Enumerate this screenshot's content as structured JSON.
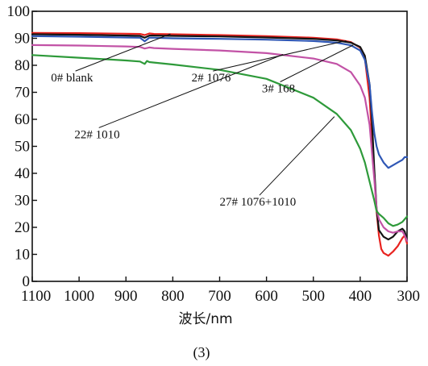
{
  "chart_data": {
    "type": "line",
    "title": "",
    "xlabel": "波长/nm",
    "ylabel": "",
    "caption": "(3)",
    "xlim": [
      1100,
      300
    ],
    "ylim": [
      0,
      100
    ],
    "x_ticks": [
      1100,
      1000,
      900,
      800,
      700,
      600,
      500,
      400,
      300
    ],
    "y_ticks": [
      0,
      10,
      20,
      30,
      40,
      50,
      60,
      70,
      80,
      90,
      100
    ],
    "grid": false,
    "legend": "annotations",
    "series": [
      {
        "name": "0# blank",
        "color": "#e8231f",
        "x": [
          1100,
          1000,
          900,
          870,
          860,
          850,
          840,
          800,
          700,
          600,
          500,
          450,
          420,
          400,
          390,
          380,
          370,
          365,
          360,
          355,
          350,
          340,
          330,
          320,
          310,
          305,
          300
        ],
        "y": [
          92,
          91.9,
          91.7,
          91.6,
          91.2,
          91.8,
          91.6,
          91.5,
          91.2,
          90.8,
          90.2,
          89.6,
          88.6,
          86.5,
          82.5,
          68,
          40,
          26,
          17,
          12,
          10.5,
          9.5,
          11,
          13,
          16,
          17,
          14
        ]
      },
      {
        "name": "2# 1076",
        "color": "#141414",
        "x": [
          1100,
          1000,
          900,
          870,
          860,
          850,
          840,
          800,
          700,
          600,
          500,
          450,
          420,
          400,
          390,
          380,
          375,
          370,
          365,
          360,
          350,
          340,
          330,
          320,
          310,
          305,
          300
        ],
        "y": [
          91.5,
          91.3,
          91,
          90.9,
          90.2,
          91,
          91,
          90.9,
          90.7,
          90.3,
          89.8,
          89.2,
          88.4,
          86.8,
          83.5,
          73,
          60,
          42,
          27,
          19,
          16.5,
          15.5,
          16.5,
          18.5,
          19.5,
          18.5,
          15
        ]
      },
      {
        "name": "3# 168",
        "color": "#2f57b5",
        "x": [
          1100,
          1000,
          900,
          870,
          860,
          850,
          840,
          800,
          700,
          600,
          500,
          450,
          420,
          400,
          390,
          380,
          375,
          370,
          365,
          360,
          350,
          340,
          330,
          320,
          310,
          305,
          300
        ],
        "y": [
          90.8,
          90.6,
          90.3,
          90.2,
          88.9,
          90.2,
          90.2,
          90,
          89.8,
          89.5,
          89,
          88.4,
          87.4,
          85.5,
          82,
          73,
          63,
          55,
          50,
          47,
          44,
          42,
          43,
          44,
          45,
          46,
          46
        ]
      },
      {
        "name": "22# 1010",
        "color": "#c252a6",
        "x": [
          1100,
          1000,
          900,
          870,
          860,
          850,
          840,
          800,
          700,
          600,
          500,
          450,
          420,
          400,
          390,
          380,
          375,
          370,
          365,
          360,
          350,
          340,
          330,
          320,
          310,
          305,
          300
        ],
        "y": [
          87.5,
          87.3,
          87,
          86.8,
          86.2,
          86.6,
          86.4,
          86.1,
          85.5,
          84.5,
          82.5,
          80.5,
          77.5,
          72.5,
          68,
          58,
          48,
          38,
          27,
          23,
          20,
          18.5,
          18,
          18.5,
          18.5,
          17,
          15
        ]
      },
      {
        "name": "27# 1076+1010",
        "color": "#2e9a3a",
        "x": [
          1100,
          1000,
          900,
          870,
          860,
          855,
          850,
          840,
          800,
          700,
          600,
          500,
          450,
          420,
          400,
          390,
          380,
          370,
          365,
          360,
          350,
          340,
          330,
          320,
          310,
          305,
          300
        ],
        "y": [
          83.8,
          82.8,
          81.8,
          81.4,
          80.5,
          81.6,
          81.2,
          81,
          80.3,
          78.3,
          75,
          68,
          62,
          56,
          49,
          44,
          37,
          30,
          26,
          25,
          23.5,
          21.5,
          20.5,
          21,
          22,
          23,
          24
        ]
      }
    ],
    "annotations": [
      {
        "text": "0# blank",
        "series": "0# blank",
        "label_x": 1060,
        "label_y": 74,
        "target_x": 805,
        "target_y": 91.6
      },
      {
        "text": "2# 1076",
        "series": "2# 1076",
        "label_x": 760,
        "label_y": 74,
        "target_x": 430,
        "target_y": 89.1
      },
      {
        "text": "3# 168",
        "series": "3# 168",
        "label_x": 610,
        "label_y": 70,
        "target_x": 415,
        "target_y": 87.5
      },
      {
        "text": "22# 1010",
        "series": "22# 1010",
        "label_x": 1010,
        "label_y": 53,
        "target_x": 565,
        "target_y": 84
      },
      {
        "text": "27# 1076+1010",
        "series": "27# 1076+1010",
        "label_x": 700,
        "label_y": 28,
        "target_x": 455,
        "target_y": 61
      }
    ]
  }
}
